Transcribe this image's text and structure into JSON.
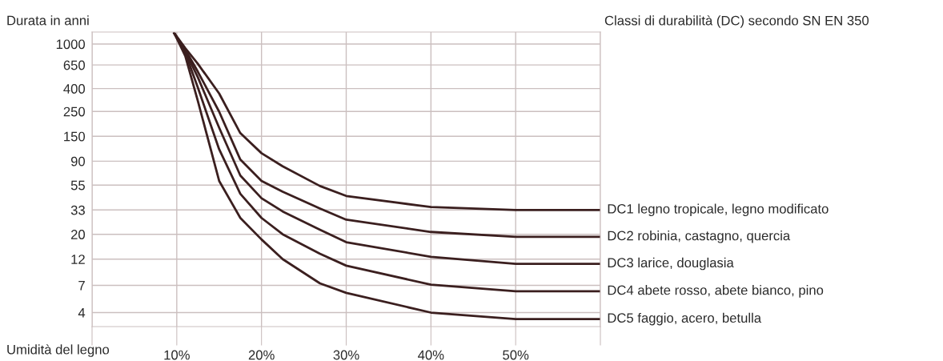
{
  "chart_data": {
    "type": "line",
    "ylabel": "Durata in anni",
    "xlabel": "Umidità del legno",
    "legend_title": "Classi di durabilità (DC) secondo SN EN 350",
    "x": [
      9.7,
      11,
      12.5,
      15,
      17.5,
      20,
      22.5,
      26.9,
      30,
      40,
      50,
      60
    ],
    "series": [
      {
        "name": "DC1 legno tropicale, legno modificato",
        "color": "#3b1f1f",
        "values": [
          1250,
          921,
          664,
          362,
          160,
          106,
          81,
          54,
          44,
          35,
          33,
          33
        ]
      },
      {
        "name": "DC2 robinia, castagno, quercia",
        "color": "#3b1f1f",
        "values": [
          1250,
          891,
          564,
          249,
          93,
          60,
          48,
          34,
          27,
          21,
          19,
          19
        ]
      },
      {
        "name": "DC3 larice, douglasia",
        "color": "#3b1f1f",
        "values": [
          1250,
          863,
          502,
          179,
          67,
          42,
          32,
          22,
          17,
          12.6,
          10.9,
          10.9
        ]
      },
      {
        "name": "DC4 abete rosso, abete bianco, pino",
        "color": "#3b1f1f",
        "values": [
          1250,
          835,
          406,
          115,
          46,
          28,
          20,
          13.4,
          10.5,
          7.1,
          6.2,
          6.2
        ]
      },
      {
        "name": "DC5 faggio, acero, betulla",
        "color": "#3b1f1f",
        "values": [
          1250,
          782,
          308,
          60,
          28,
          18,
          12,
          7.3,
          6.0,
          4.0,
          3.5,
          3.5
        ]
      }
    ],
    "log": "y",
    "xlim": [
      0,
      60
    ],
    "xticks": [
      {
        "value": 0,
        "label": null
      },
      {
        "value": 10,
        "label": "10%"
      },
      {
        "value": 20,
        "label": "20%"
      },
      {
        "value": 30,
        "label": "30%"
      },
      {
        "value": 40,
        "label": "40%"
      },
      {
        "value": 50,
        "label": "50%"
      },
      {
        "value": 60,
        "label": null
      }
    ],
    "ylim": [
      3,
      1280
    ],
    "yticks": [
      1000,
      650,
      400,
      250,
      150,
      90,
      55,
      33,
      20,
      12,
      7,
      4
    ],
    "grid": true,
    "legend": false,
    "marker": "none",
    "line_style": "solid"
  }
}
